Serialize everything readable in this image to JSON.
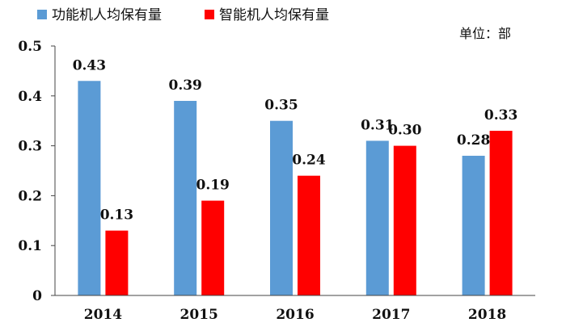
{
  "chart_data": {
    "type": "bar",
    "categories": [
      "2014",
      "2015",
      "2016",
      "2017",
      "2018"
    ],
    "series": [
      {
        "name": "功能机人均保有量",
        "values": [
          0.43,
          0.39,
          0.35,
          0.31,
          0.28
        ],
        "color": "#5B9BD5"
      },
      {
        "name": "智能机人均保有量",
        "values": [
          0.13,
          0.19,
          0.24,
          0.3,
          0.33
        ],
        "color": "#FF0000"
      }
    ],
    "data_labels": [
      [
        "0.43",
        "0.39",
        "0.35",
        "0.31",
        "0.28"
      ],
      [
        "0.13",
        "0.19",
        "0.24",
        "0.30",
        "0.33"
      ]
    ],
    "yticks": [
      "0",
      "0.1",
      "0.2",
      "0.3",
      "0.4",
      "0.5"
    ],
    "ylim": [
      0,
      0.5
    ],
    "unit": "单位：部",
    "legend_position": "top-left",
    "grid": false
  }
}
